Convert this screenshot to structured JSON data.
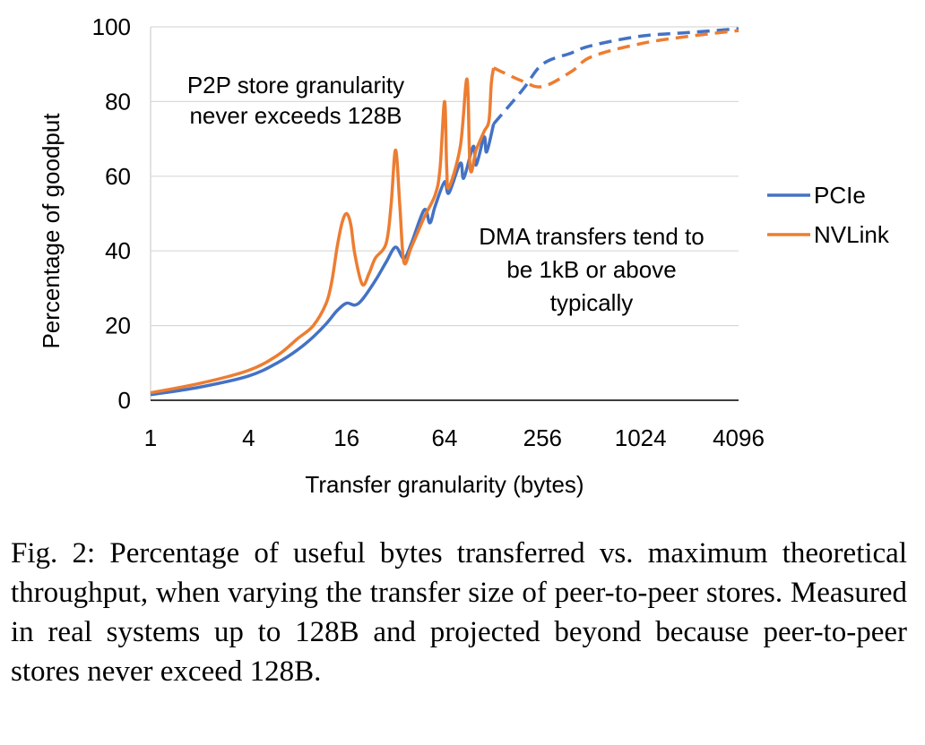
{
  "chart_data": {
    "type": "line",
    "xlabel": "Transfer granularity (bytes)",
    "ylabel": "Percentage of goodput",
    "x_scale": "log2",
    "xlim": [
      1,
      4096
    ],
    "ylim": [
      0,
      100
    ],
    "x_ticks": [
      "1",
      "4",
      "16",
      "64",
      "256",
      "1024",
      "4096"
    ],
    "y_ticks": [
      "0",
      "20",
      "40",
      "60",
      "80",
      "100"
    ],
    "grid": "horizontal",
    "legend": "right",
    "series": [
      {
        "name": "PCIe",
        "color": "#4472C4",
        "measured": [
          [
            1,
            1.5
          ],
          [
            2,
            3.5
          ],
          [
            4,
            6.5
          ],
          [
            6,
            10
          ],
          [
            8,
            13.5
          ],
          [
            10,
            17
          ],
          [
            12,
            20.5
          ],
          [
            14,
            24
          ],
          [
            16,
            26
          ],
          [
            18,
            25.5
          ],
          [
            20,
            27
          ],
          [
            24,
            32
          ],
          [
            28,
            37
          ],
          [
            32,
            41
          ],
          [
            36,
            38
          ],
          [
            40,
            42
          ],
          [
            48,
            51
          ],
          [
            52,
            47.5
          ],
          [
            56,
            52
          ],
          [
            64,
            58.5
          ],
          [
            68,
            55.5
          ],
          [
            80,
            63.5
          ],
          [
            84,
            59.5
          ],
          [
            96,
            68
          ],
          [
            100,
            63
          ],
          [
            112,
            70.5
          ],
          [
            116,
            66.5
          ],
          [
            128,
            74
          ]
        ],
        "projected": [
          [
            128,
            74
          ],
          [
            192,
            83
          ],
          [
            256,
            90
          ],
          [
            384,
            93
          ],
          [
            512,
            95
          ],
          [
            1024,
            97.5
          ],
          [
            2048,
            98.5
          ],
          [
            4096,
            99.5
          ]
        ]
      },
      {
        "name": "NVLink",
        "color": "#ED7D31",
        "measured": [
          [
            1,
            2
          ],
          [
            2,
            4.5
          ],
          [
            4,
            8
          ],
          [
            6,
            12
          ],
          [
            8,
            16.5
          ],
          [
            10,
            20
          ],
          [
            12,
            26
          ],
          [
            13,
            32
          ],
          [
            14,
            41
          ],
          [
            15,
            47.5
          ],
          [
            16,
            50
          ],
          [
            17,
            47
          ],
          [
            18,
            39
          ],
          [
            20,
            31
          ],
          [
            22,
            34
          ],
          [
            24,
            38
          ],
          [
            28,
            42
          ],
          [
            30,
            52
          ],
          [
            32,
            67
          ],
          [
            34,
            52
          ],
          [
            36,
            37
          ],
          [
            40,
            41
          ],
          [
            48,
            49
          ],
          [
            56,
            55
          ],
          [
            60,
            62
          ],
          [
            64,
            80
          ],
          [
            66,
            62
          ],
          [
            68,
            57
          ],
          [
            80,
            68
          ],
          [
            88,
            86
          ],
          [
            92,
            62
          ],
          [
            100,
            67
          ],
          [
            112,
            72
          ],
          [
            120,
            75
          ],
          [
            124,
            85
          ],
          [
            128,
            89
          ]
        ],
        "projected": [
          [
            128,
            89
          ],
          [
            192,
            85.5
          ],
          [
            256,
            84
          ],
          [
            384,
            88
          ],
          [
            512,
            92
          ],
          [
            1024,
            95.5
          ],
          [
            2048,
            97.5
          ],
          [
            4096,
            99
          ]
        ]
      }
    ],
    "annotations": [
      {
        "lines": [
          "P2P store granularity",
          "never exceeds 128B"
        ]
      },
      {
        "lines": [
          "DMA transfers tend to",
          "be 1kB or above",
          "typically"
        ]
      }
    ]
  },
  "caption": {
    "text": "Fig. 2: Percentage of useful bytes transferred vs. maximum theoretical throughput, when varying the transfer size of peer-to-peer stores. Measured in real systems up to 128B and projected beyond because peer-to-peer stores never exceed 128B."
  }
}
